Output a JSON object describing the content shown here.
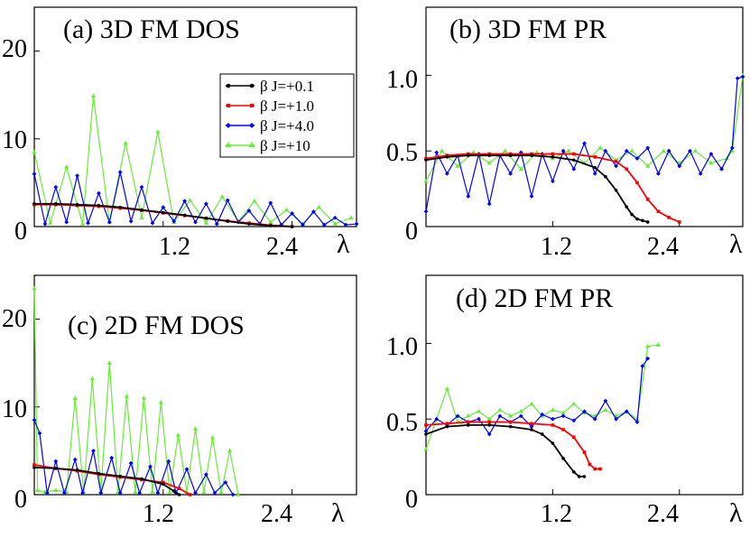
{
  "figure": {
    "xlabel": "λ",
    "legend_entries": [
      "β J=+0.1",
      "β J=+1.0",
      "β J=+4.0",
      "β J=+10"
    ]
  },
  "chart_data": [
    {
      "id": "a",
      "type": "line",
      "title": "(a) 3D FM DOS",
      "xlabel": "λ",
      "ylabel": "",
      "xlim": [
        0,
        3.0
      ],
      "ylim": [
        0,
        25
      ],
      "xticks": [
        1.2,
        2.4
      ],
      "xtick_labels": [
        "1.2",
        "2.4"
      ],
      "yticks": [
        0,
        10,
        20
      ],
      "ytick_labels": [
        "0",
        "10",
        "20"
      ],
      "legend": "top-right",
      "series": [
        {
          "name": "β J=+0.1",
          "color": "#000000",
          "marker": "circle",
          "x": [
            0.0,
            0.2,
            0.4,
            0.6,
            0.8,
            1.0,
            1.2,
            1.4,
            1.6,
            1.8,
            2.0,
            2.2,
            2.4
          ],
          "y": [
            2.6,
            2.6,
            2.5,
            2.4,
            2.2,
            1.9,
            1.6,
            1.3,
            0.95,
            0.6,
            0.3,
            0.1,
            0.0
          ]
        },
        {
          "name": "β J=+1.0",
          "color": "#ff0000",
          "marker": "square",
          "x": [
            0.0,
            0.2,
            0.4,
            0.6,
            0.8,
            1.0,
            1.2,
            1.4,
            1.6,
            1.8,
            2.0,
            2.2,
            2.4
          ],
          "y": [
            2.5,
            2.5,
            2.4,
            2.3,
            2.1,
            1.85,
            1.55,
            1.25,
            0.95,
            0.65,
            0.4,
            0.15,
            0.0
          ]
        },
        {
          "name": "β J=+4.0",
          "color": "#0000ff",
          "marker": "diamond",
          "x": [
            0.0,
            0.1,
            0.2,
            0.3,
            0.4,
            0.5,
            0.6,
            0.7,
            0.8,
            0.9,
            1.0,
            1.1,
            1.2,
            1.3,
            1.4,
            1.5,
            1.6,
            1.7,
            1.8,
            1.9,
            2.0,
            2.1,
            2.2,
            2.3,
            2.4,
            2.5,
            2.6,
            2.7,
            2.8,
            2.9,
            3.0
          ],
          "y": [
            6,
            0.3,
            4.5,
            0.5,
            5.8,
            0.4,
            3.8,
            0.5,
            6.2,
            0.6,
            4.5,
            0.4,
            2.2,
            0.6,
            2.9,
            0.5,
            2.6,
            0.3,
            3.0,
            0.5,
            1.8,
            0.3,
            2.7,
            0.2,
            1.5,
            0.2,
            1.7,
            0.2,
            1.0,
            0.2,
            0.3
          ]
        },
        {
          "name": "β J=+10",
          "color": "#66ee33",
          "marker": "triangle",
          "x": [
            0.0,
            0.15,
            0.3,
            0.45,
            0.55,
            0.7,
            0.85,
            1.0,
            1.15,
            1.3,
            1.45,
            1.6,
            1.75,
            1.9,
            2.05,
            2.2,
            2.35,
            2.5,
            2.65,
            2.8,
            2.95
          ],
          "y": [
            8.5,
            0.4,
            6.8,
            0.3,
            14.9,
            0.5,
            9.5,
            1.0,
            10.8,
            0.5,
            3.0,
            0.4,
            3.4,
            0.6,
            2.9,
            0.5,
            1.9,
            0.3,
            2.2,
            0.3,
            1.0
          ]
        }
      ]
    },
    {
      "id": "b",
      "type": "line",
      "title": "(b) 3D FM PR",
      "xlabel": "λ",
      "ylabel": "",
      "xlim": [
        0,
        3.0
      ],
      "ylim": [
        0,
        1.45
      ],
      "xticks": [
        1.2,
        2.4
      ],
      "xtick_labels": [
        "1.2",
        "2.4"
      ],
      "yticks": [
        0,
        0.5,
        1.0
      ],
      "ytick_labels": [
        "0",
        "0.5",
        "1.0"
      ],
      "series": [
        {
          "name": "β J=+0.1",
          "color": "#000000",
          "marker": "circle",
          "x": [
            0.0,
            0.2,
            0.4,
            0.6,
            0.8,
            1.0,
            1.2,
            1.4,
            1.6,
            1.7,
            1.8,
            1.9,
            1.95,
            2.0,
            2.05,
            2.1
          ],
          "y": [
            0.44,
            0.46,
            0.47,
            0.47,
            0.47,
            0.47,
            0.46,
            0.44,
            0.39,
            0.33,
            0.24,
            0.13,
            0.08,
            0.05,
            0.04,
            0.03
          ]
        },
        {
          "name": "β J=+1.0",
          "color": "#ff0000",
          "marker": "square",
          "x": [
            0.0,
            0.2,
            0.4,
            0.6,
            0.8,
            1.0,
            1.2,
            1.4,
            1.6,
            1.8,
            1.9,
            2.0,
            2.1,
            2.2,
            2.3,
            2.4
          ],
          "y": [
            0.45,
            0.47,
            0.48,
            0.48,
            0.48,
            0.48,
            0.48,
            0.48,
            0.46,
            0.43,
            0.38,
            0.29,
            0.18,
            0.1,
            0.06,
            0.03
          ]
        },
        {
          "name": "β J=+4.0",
          "color": "#0000ff",
          "marker": "diamond",
          "x": [
            0.0,
            0.1,
            0.2,
            0.3,
            0.4,
            0.5,
            0.6,
            0.7,
            0.8,
            0.9,
            1.0,
            1.1,
            1.2,
            1.3,
            1.4,
            1.5,
            1.6,
            1.7,
            1.8,
            1.9,
            2.0,
            2.1,
            2.2,
            2.3,
            2.4,
            2.5,
            2.6,
            2.7,
            2.8,
            2.9,
            2.95,
            3.0
          ],
          "y": [
            0.1,
            0.49,
            0.35,
            0.47,
            0.2,
            0.48,
            0.15,
            0.47,
            0.35,
            0.49,
            0.2,
            0.48,
            0.3,
            0.5,
            0.38,
            0.55,
            0.35,
            0.5,
            0.4,
            0.5,
            0.45,
            0.52,
            0.35,
            0.5,
            0.4,
            0.5,
            0.35,
            0.48,
            0.38,
            0.52,
            0.98,
            0.99
          ]
        },
        {
          "name": "β J=+10",
          "color": "#66ee33",
          "marker": "triangle",
          "x": [
            0.0,
            0.15,
            0.3,
            0.45,
            0.6,
            0.75,
            0.9,
            1.05,
            1.2,
            1.35,
            1.5,
            1.65,
            1.8,
            1.95,
            2.1,
            2.25,
            2.4,
            2.55,
            2.7,
            2.85,
            2.9,
            3.0
          ],
          "y": [
            0.3,
            0.5,
            0.4,
            0.49,
            0.42,
            0.5,
            0.38,
            0.49,
            0.45,
            0.5,
            0.42,
            0.52,
            0.44,
            0.5,
            0.4,
            0.5,
            0.42,
            0.5,
            0.42,
            0.45,
            0.5,
            1.0
          ]
        }
      ]
    },
    {
      "id": "c",
      "type": "line",
      "title": "(c) 2D FM DOS",
      "xlabel": "λ",
      "ylabel": "",
      "xlim": [
        0,
        3.0
      ],
      "ylim": [
        0,
        25
      ],
      "xticks": [
        1.2,
        2.4
      ],
      "xtick_labels": [
        "1.2",
        "2.4"
      ],
      "yticks": [
        0,
        10,
        20
      ],
      "ytick_labels": [
        "0",
        "10",
        "20"
      ],
      "series": [
        {
          "name": "β J=+0.1",
          "color": "#000000",
          "marker": "circle",
          "x": [
            0.0,
            0.2,
            0.4,
            0.6,
            0.8,
            1.0,
            1.2,
            1.3,
            1.35
          ],
          "y": [
            3.1,
            3.0,
            2.8,
            2.4,
            2.1,
            1.8,
            1.2,
            0.4,
            0.0
          ]
        },
        {
          "name": "β J=+1.0",
          "color": "#ff0000",
          "marker": "square",
          "x": [
            0.0,
            0.2,
            0.4,
            0.6,
            0.8,
            1.0,
            1.2,
            1.35,
            1.45
          ],
          "y": [
            3.4,
            3.0,
            2.7,
            2.3,
            2.0,
            1.7,
            1.4,
            0.7,
            0.0
          ]
        },
        {
          "name": "β J=+4.0",
          "color": "#0000ff",
          "marker": "diamond",
          "x": [
            0.0,
            0.05,
            0.12,
            0.2,
            0.28,
            0.38,
            0.45,
            0.55,
            0.62,
            0.72,
            0.8,
            0.9,
            0.98,
            1.08,
            1.15,
            1.25,
            1.32,
            1.42,
            1.5,
            1.6,
            1.68,
            1.78,
            1.85
          ],
          "y": [
            8.5,
            7.0,
            0.2,
            3.8,
            0.2,
            4.0,
            0.2,
            5.0,
            0.2,
            4.2,
            0.2,
            3.6,
            0.2,
            3.2,
            0.2,
            3.8,
            0.2,
            2.9,
            0.2,
            2.3,
            0.2,
            1.4,
            0.0
          ]
        },
        {
          "name": "β J=+10",
          "color": "#66ee33",
          "marker": "triangle",
          "x": [
            0.0,
            0.03,
            0.1,
            0.2,
            0.3,
            0.38,
            0.46,
            0.54,
            0.62,
            0.7,
            0.78,
            0.86,
            0.94,
            1.02,
            1.1,
            1.18,
            1.26,
            1.34,
            1.42,
            1.5,
            1.58,
            1.66,
            1.74,
            1.82,
            1.9
          ],
          "y": [
            23.5,
            0.5,
            0.3,
            0.5,
            0.3,
            11.0,
            0.3,
            13.2,
            0.3,
            15.0,
            0.3,
            11.2,
            0.3,
            11.0,
            0.3,
            10.5,
            0.3,
            6.8,
            0.3,
            7.5,
            0.3,
            6.5,
            0.3,
            5.0,
            0.0
          ]
        }
      ]
    },
    {
      "id": "d",
      "type": "line",
      "title": "(d) 2D FM PR",
      "xlabel": "λ",
      "ylabel": "",
      "xlim": [
        0,
        3.0
      ],
      "ylim": [
        0,
        1.45
      ],
      "xticks": [
        1.2,
        2.4
      ],
      "xtick_labels": [
        "1.2",
        "2.4"
      ],
      "yticks": [
        0,
        0.5,
        1.0
      ],
      "ytick_labels": [
        "0",
        "0.5",
        "1.0"
      ],
      "series": [
        {
          "name": "β J=+0.1",
          "color": "#000000",
          "marker": "circle",
          "x": [
            0.0,
            0.2,
            0.4,
            0.6,
            0.8,
            1.0,
            1.1,
            1.2,
            1.3,
            1.4,
            1.45,
            1.5
          ],
          "y": [
            0.4,
            0.45,
            0.46,
            0.46,
            0.45,
            0.43,
            0.4,
            0.34,
            0.24,
            0.15,
            0.12,
            0.12
          ]
        },
        {
          "name": "β J=+1.0",
          "color": "#ff0000",
          "marker": "square",
          "x": [
            0.0,
            0.2,
            0.4,
            0.6,
            0.8,
            1.0,
            1.2,
            1.3,
            1.4,
            1.5,
            1.55,
            1.6,
            1.65
          ],
          "y": [
            0.46,
            0.47,
            0.48,
            0.48,
            0.48,
            0.47,
            0.46,
            0.43,
            0.38,
            0.28,
            0.2,
            0.17,
            0.17
          ]
        },
        {
          "name": "β J=+4.0",
          "color": "#0000ff",
          "marker": "diamond",
          "x": [
            0.0,
            0.1,
            0.2,
            0.3,
            0.4,
            0.5,
            0.6,
            0.7,
            0.8,
            0.9,
            1.0,
            1.1,
            1.2,
            1.3,
            1.4,
            1.5,
            1.6,
            1.7,
            1.8,
            1.9,
            2.0,
            2.05,
            2.1
          ],
          "y": [
            0.42,
            0.5,
            0.46,
            0.52,
            0.48,
            0.5,
            0.4,
            0.52,
            0.48,
            0.52,
            0.45,
            0.53,
            0.5,
            0.52,
            0.49,
            0.55,
            0.5,
            0.62,
            0.5,
            0.55,
            0.48,
            0.85,
            0.9
          ]
        },
        {
          "name": "β J=+10",
          "color": "#66ee33",
          "marker": "triangle",
          "x": [
            0.0,
            0.1,
            0.2,
            0.3,
            0.4,
            0.5,
            0.6,
            0.7,
            0.8,
            0.9,
            1.0,
            1.1,
            1.2,
            1.3,
            1.4,
            1.5,
            1.6,
            1.7,
            1.8,
            1.9,
            2.0,
            2.1,
            2.2
          ],
          "y": [
            0.3,
            0.5,
            0.7,
            0.48,
            0.52,
            0.55,
            0.5,
            0.56,
            0.52,
            0.55,
            0.6,
            0.52,
            0.56,
            0.54,
            0.6,
            0.54,
            0.52,
            0.56,
            0.52,
            0.55,
            0.5,
            0.98,
            0.99
          ]
        }
      ]
    }
  ]
}
